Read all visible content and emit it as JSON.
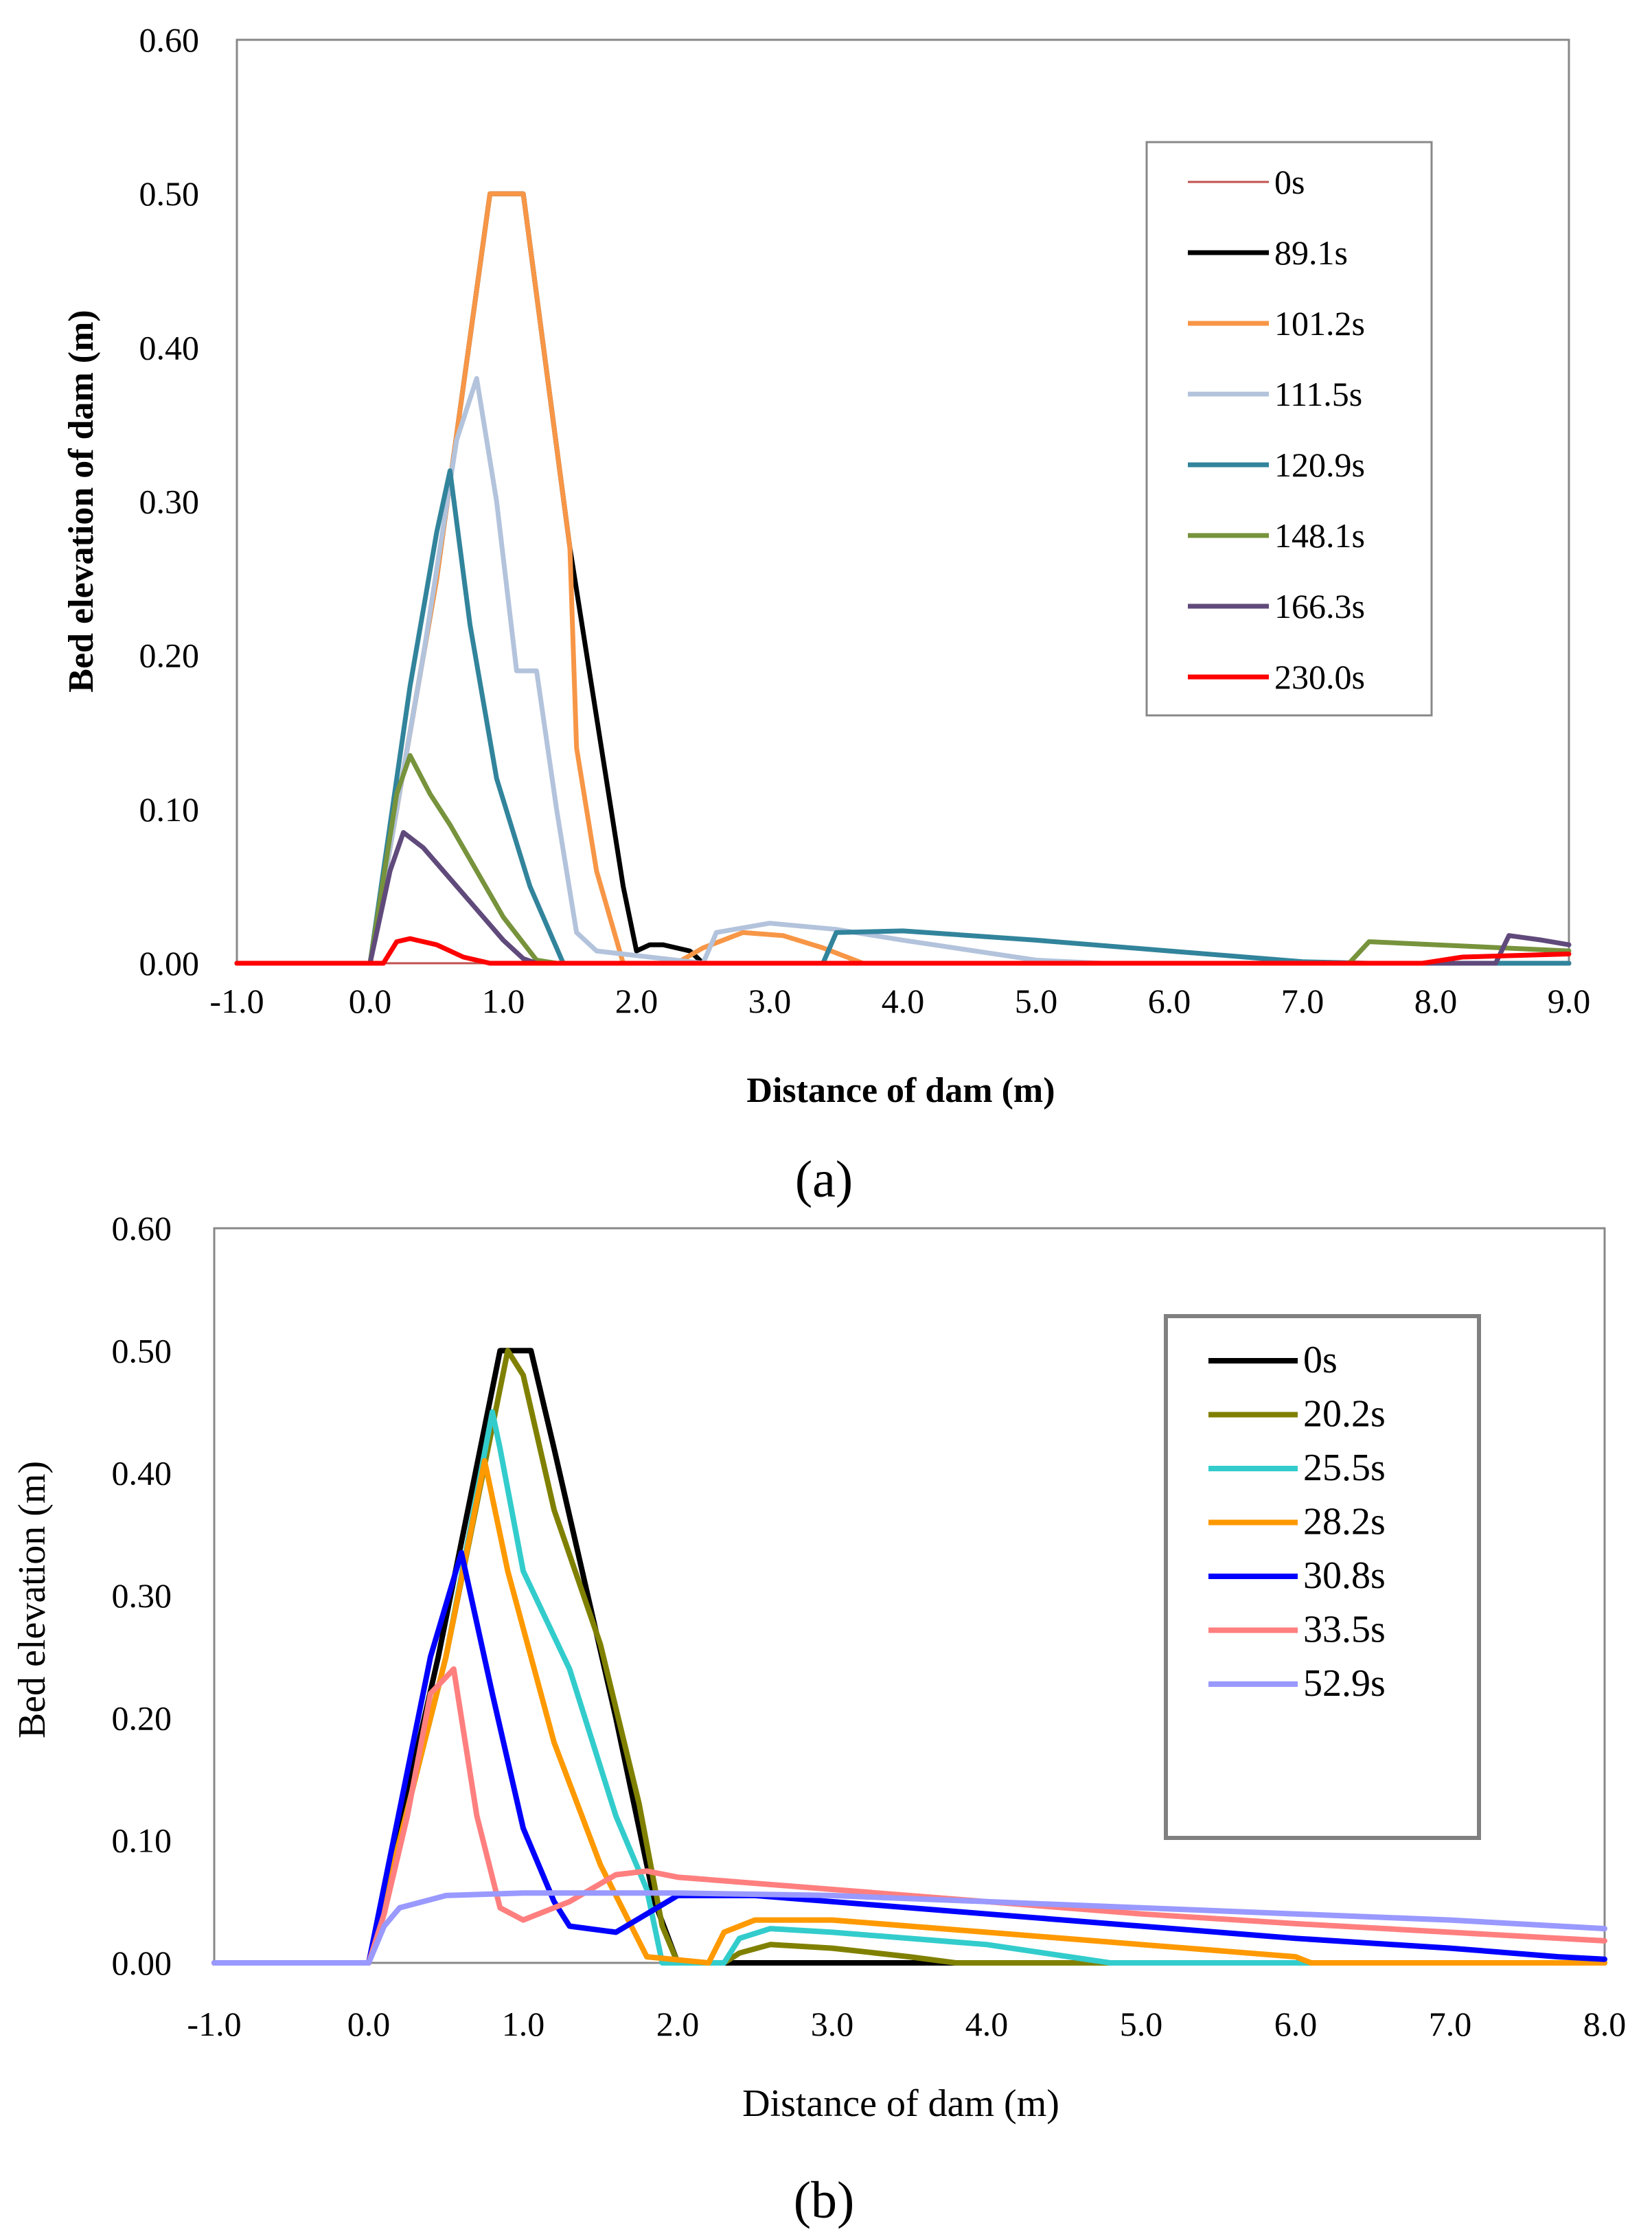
{
  "chart_data": [
    {
      "type": "line",
      "panel_label": "(a)",
      "xlabel": "Distance of dam (m)",
      "ylabel": "Bed elevation of dam (m)",
      "xlim": [
        -1.0,
        9.0
      ],
      "ylim": [
        0.0,
        0.6
      ],
      "xticks": [
        "-1.0",
        "0.0",
        "1.0",
        "2.0",
        "3.0",
        "4.0",
        "5.0",
        "6.0",
        "7.0",
        "8.0",
        "9.0"
      ],
      "yticks": [
        "0.00",
        "0.10",
        "0.20",
        "0.30",
        "0.40",
        "0.50",
        "0.60"
      ],
      "legend_position": "top-right",
      "series": [
        {
          "name": "0s",
          "color": "#c0504d",
          "width": 3,
          "x": [
            -1.0,
            9.0
          ],
          "y": [
            0.0,
            0.0
          ]
        },
        {
          "name": "89.1s",
          "color": "#000000",
          "width": 7,
          "x": [
            -1.0,
            0.0,
            0.5,
            0.9,
            1.15,
            1.5,
            1.9,
            2.0,
            2.1,
            2.2,
            2.4,
            2.5,
            9.0
          ],
          "y": [
            0.0,
            0.0,
            0.25,
            0.5,
            0.5,
            0.27,
            0.05,
            0.008,
            0.012,
            0.012,
            0.008,
            0.0,
            0.0
          ]
        },
        {
          "name": "101.2s",
          "color": "#f79646",
          "width": 7,
          "x": [
            -1.0,
            0.0,
            0.5,
            0.9,
            1.15,
            1.5,
            1.55,
            1.7,
            1.9,
            2.3,
            2.5,
            2.8,
            3.1,
            3.4,
            3.7,
            4.0,
            9.0
          ],
          "y": [
            0.0,
            0.0,
            0.25,
            0.5,
            0.5,
            0.27,
            0.14,
            0.06,
            0.0,
            0.0,
            0.01,
            0.02,
            0.018,
            0.01,
            0.0,
            0.0,
            0.0
          ]
        },
        {
          "name": "111.5s",
          "color": "#b3c3dc",
          "width": 7,
          "x": [
            -1.0,
            0.0,
            0.4,
            0.65,
            0.8,
            0.95,
            1.1,
            1.25,
            1.4,
            1.55,
            1.7,
            2.5,
            2.6,
            3.0,
            3.5,
            4.0,
            5.0,
            5.5,
            9.0
          ],
          "y": [
            0.0,
            0.0,
            0.2,
            0.34,
            0.38,
            0.3,
            0.19,
            0.19,
            0.1,
            0.02,
            0.008,
            0.0,
            0.02,
            0.026,
            0.022,
            0.015,
            0.002,
            0.0,
            0.0
          ]
        },
        {
          "name": "120.9s",
          "color": "#31849b",
          "width": 7,
          "x": [
            -1.0,
            0.0,
            0.3,
            0.5,
            0.6,
            0.75,
            0.95,
            1.2,
            1.45,
            1.6,
            3.4,
            3.5,
            4.0,
            5.0,
            6.0,
            7.0,
            7.5,
            9.0
          ],
          "y": [
            0.0,
            0.0,
            0.18,
            0.28,
            0.32,
            0.22,
            0.12,
            0.05,
            0.0,
            0.0,
            0.0,
            0.02,
            0.021,
            0.015,
            0.008,
            0.001,
            0.0,
            0.0
          ]
        },
        {
          "name": "148.1s",
          "color": "#77933c",
          "width": 7,
          "x": [
            -1.0,
            0.0,
            0.2,
            0.3,
            0.45,
            0.6,
            0.8,
            1.0,
            1.25,
            1.4,
            7.35,
            7.5,
            8.0,
            9.0
          ],
          "y": [
            0.0,
            0.0,
            0.11,
            0.135,
            0.11,
            0.09,
            0.06,
            0.03,
            0.002,
            0.0,
            0.0,
            0.014,
            0.012,
            0.008
          ]
        },
        {
          "name": "166.3s",
          "color": "#604a7b",
          "width": 7,
          "x": [
            -1.0,
            0.0,
            0.15,
            0.25,
            0.4,
            0.6,
            0.8,
            1.0,
            1.15,
            1.25,
            8.45,
            8.55,
            8.8,
            9.0
          ],
          "y": [
            0.0,
            0.0,
            0.06,
            0.085,
            0.075,
            0.055,
            0.035,
            0.015,
            0.003,
            0.0,
            0.0,
            0.018,
            0.015,
            0.012
          ]
        },
        {
          "name": "230.0s",
          "color": "#ff0000",
          "width": 7,
          "x": [
            -1.0,
            0.1,
            0.2,
            0.3,
            0.5,
            0.7,
            0.9,
            1.0,
            7.9,
            8.2,
            9.0
          ],
          "y": [
            0.0,
            0.0,
            0.014,
            0.016,
            0.012,
            0.004,
            0.0,
            0.0,
            0.0,
            0.004,
            0.006
          ]
        }
      ]
    },
    {
      "type": "line",
      "panel_label": "(b)",
      "xlabel": "Distance of dam (m)",
      "ylabel": "Bed elevation (m)",
      "xlim": [
        -1.0,
        8.0
      ],
      "ylim": [
        0.0,
        0.6
      ],
      "xticks": [
        "-1.0",
        "0.0",
        "1.0",
        "2.0",
        "3.0",
        "4.0",
        "5.0",
        "6.0",
        "7.0",
        "8.0"
      ],
      "yticks": [
        "0.00",
        "0.10",
        "0.20",
        "0.30",
        "0.40",
        "0.50",
        "0.60"
      ],
      "legend_position": "top-right",
      "series": [
        {
          "name": "0s",
          "color": "#000000",
          "width": 8,
          "x": [
            -1.0,
            0.0,
            0.45,
            0.85,
            1.05,
            1.2,
            1.6,
            1.85,
            2.0,
            8.0
          ],
          "y": [
            0.0,
            0.0,
            0.25,
            0.5,
            0.5,
            0.42,
            0.2,
            0.05,
            0.0,
            0.0
          ]
        },
        {
          "name": "20.2s",
          "color": "#808000",
          "width": 8,
          "x": [
            -1.0,
            0.0,
            0.5,
            0.9,
            1.0,
            1.2,
            1.5,
            1.75,
            1.9,
            2.0,
            2.3,
            2.4,
            2.6,
            3.0,
            3.5,
            3.8,
            8.0
          ],
          "y": [
            0.0,
            0.0,
            0.25,
            0.5,
            0.48,
            0.37,
            0.26,
            0.13,
            0.03,
            0.0,
            0.0,
            0.008,
            0.015,
            0.012,
            0.005,
            0.0,
            0.0
          ]
        },
        {
          "name": "25.5s",
          "color": "#33cccc",
          "width": 8,
          "x": [
            -1.0,
            0.0,
            0.5,
            0.8,
            0.85,
            1.0,
            1.3,
            1.6,
            1.8,
            1.9,
            2.3,
            2.4,
            2.6,
            3.0,
            4.0,
            4.8,
            8.0
          ],
          "y": [
            0.0,
            0.0,
            0.25,
            0.45,
            0.42,
            0.32,
            0.24,
            0.12,
            0.06,
            0.0,
            0.0,
            0.02,
            0.028,
            0.025,
            0.015,
            0.0,
            0.0
          ]
        },
        {
          "name": "28.2s",
          "color": "#ff9900",
          "width": 8,
          "x": [
            -1.0,
            0.0,
            0.5,
            0.75,
            0.9,
            1.2,
            1.5,
            1.7,
            1.8,
            2.2,
            2.3,
            2.5,
            3.0,
            4.0,
            5.0,
            6.0,
            6.1,
            8.0
          ],
          "y": [
            0.0,
            0.0,
            0.25,
            0.41,
            0.32,
            0.18,
            0.08,
            0.03,
            0.005,
            0.0,
            0.025,
            0.035,
            0.035,
            0.025,
            0.015,
            0.005,
            0.0,
            0.0
          ]
        },
        {
          "name": "30.8s",
          "color": "#0000ff",
          "width": 8,
          "x": [
            -1.0,
            0.0,
            0.4,
            0.6,
            0.8,
            1.0,
            1.2,
            1.3,
            1.6,
            1.8,
            2.0,
            2.5,
            3.0,
            4.0,
            5.0,
            6.0,
            7.0,
            7.7,
            8.0
          ],
          "y": [
            0.0,
            0.0,
            0.25,
            0.335,
            0.22,
            0.11,
            0.05,
            0.03,
            0.025,
            0.04,
            0.055,
            0.055,
            0.05,
            0.04,
            0.03,
            0.02,
            0.012,
            0.005,
            0.003
          ]
        },
        {
          "name": "33.5s",
          "color": "#ff7f7f",
          "width": 8,
          "x": [
            -1.0,
            0.0,
            0.1,
            0.25,
            0.4,
            0.55,
            0.7,
            0.85,
            1.0,
            1.3,
            1.6,
            1.8,
            2.0,
            3.0,
            4.0,
            5.0,
            6.0,
            7.0,
            8.0
          ],
          "y": [
            0.0,
            0.0,
            0.04,
            0.12,
            0.22,
            0.24,
            0.12,
            0.045,
            0.035,
            0.05,
            0.072,
            0.075,
            0.07,
            0.06,
            0.05,
            0.04,
            0.032,
            0.025,
            0.018
          ]
        },
        {
          "name": "52.9s",
          "color": "#9999ff",
          "width": 8,
          "x": [
            -1.0,
            0.0,
            0.1,
            0.2,
            0.5,
            1.0,
            2.0,
            3.0,
            4.0,
            5.0,
            6.0,
            7.0,
            8.0
          ],
          "y": [
            0.0,
            0.0,
            0.03,
            0.045,
            0.055,
            0.057,
            0.057,
            0.055,
            0.05,
            0.045,
            0.04,
            0.035,
            0.028
          ]
        }
      ]
    }
  ]
}
